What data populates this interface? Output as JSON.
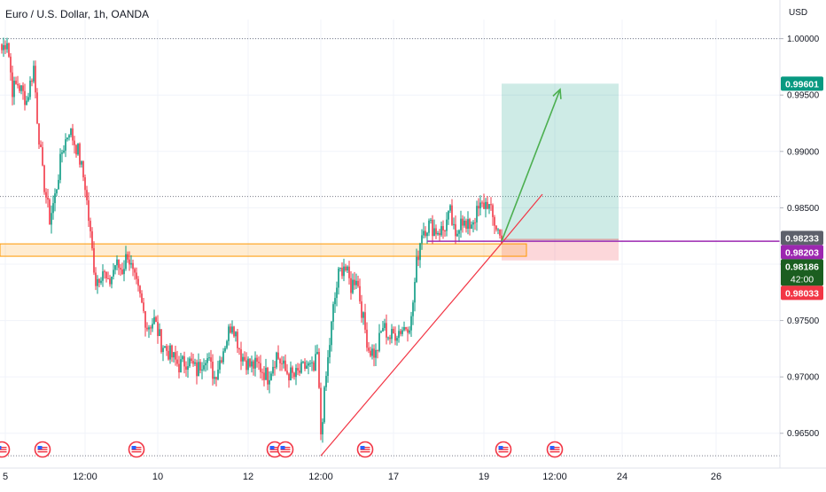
{
  "header": {
    "symbol_title": "Euro / U.S. Dollar, 1h, OANDA",
    "currency": "USD"
  },
  "chart_data": {
    "type": "candlestick",
    "title": "Euro / U.S. Dollar, 1h, OANDA",
    "y_unit": "USD",
    "y_ticks": [
      "1.00000",
      "0.99500",
      "0.99000",
      "0.98500",
      "0.98000",
      "0.97500",
      "0.97000",
      "0.96500"
    ],
    "y_tick_values": [
      1.0,
      0.995,
      0.99,
      0.985,
      0.98,
      0.975,
      0.97,
      0.965
    ],
    "ylim": [
      0.9627,
      1.0017
    ],
    "x_ticks": [
      "5",
      "12:00",
      "10",
      "12",
      "12:00",
      "17",
      "19",
      "12:00",
      "24",
      "26"
    ],
    "x_tick_index": [
      2,
      47,
      88,
      139,
      180,
      221,
      272,
      312,
      350,
      403
    ],
    "x_count": 470,
    "price_labels": [
      {
        "name": "long-target",
        "value": "0.99601",
        "price": 0.99601,
        "color": "#089981"
      },
      {
        "name": "previous-close",
        "value": "0.98233",
        "price": 0.98233,
        "color": "#5d606b"
      },
      {
        "name": "horizontal-line",
        "value": "0.98203",
        "price": 0.98203,
        "color": "#9c27b0"
      },
      {
        "name": "last-price",
        "value": "0.98186",
        "price": 0.98186,
        "color": "#1b5e20",
        "countdown": "42:00"
      },
      {
        "name": "stop-loss",
        "value": "0.98033",
        "price": 0.98033,
        "color": "#f23645"
      }
    ],
    "dotted_levels": [
      1.0,
      0.986,
      0.963
    ],
    "support_zone": {
      "top": 0.9818,
      "bottom": 0.9807,
      "x_start": 0,
      "x_end": 296,
      "color": "#ff9800"
    },
    "long_position": {
      "entry": 0.98203,
      "target": 0.99601,
      "stop": 0.98033,
      "x_start": 282,
      "x_end": 348,
      "profit_color": "#089981",
      "loss_color": "#f23645"
    },
    "trend_line": {
      "x1": 180,
      "y1": 0.963,
      "x2": 282,
      "y2": 0.98186,
      "ext_x": 305,
      "ext_y": 0.9862,
      "color": "#f23645"
    },
    "purple_line": {
      "x_start": 240,
      "price": 0.98203,
      "color": "#9c27b0"
    },
    "projection_arrow": {
      "x1": 282,
      "y1": 0.98203,
      "x2": 315,
      "y2": 0.9955,
      "color": "#4caf50"
    },
    "event_markers": [
      0,
      23,
      76,
      154,
      160,
      205,
      283,
      312
    ],
    "anchors": [
      [
        0,
        0.999
      ],
      [
        3,
        1.0
      ],
      [
        6,
        0.9955
      ],
      [
        9,
        0.996
      ],
      [
        14,
        0.9945
      ],
      [
        18,
        0.9975
      ],
      [
        20,
        0.993
      ],
      [
        23,
        0.988
      ],
      [
        27,
        0.984
      ],
      [
        30,
        0.986
      ],
      [
        34,
        0.99
      ],
      [
        38,
        0.992
      ],
      [
        43,
        0.99
      ],
      [
        47,
        0.987
      ],
      [
        50,
        0.9825
      ],
      [
        53,
        0.9785
      ],
      [
        57,
        0.9795
      ],
      [
        60,
        0.978
      ],
      [
        64,
        0.98
      ],
      [
        68,
        0.9795
      ],
      [
        71,
        0.981
      ],
      [
        74,
        0.979
      ],
      [
        78,
        0.977
      ],
      [
        82,
        0.9745
      ],
      [
        86,
        0.975
      ],
      [
        90,
        0.973
      ],
      [
        95,
        0.972
      ],
      [
        100,
        0.971
      ],
      [
        105,
        0.9715
      ],
      [
        110,
        0.9705
      ],
      [
        115,
        0.972
      ],
      [
        120,
        0.97
      ],
      [
        125,
        0.9725
      ],
      [
        130,
        0.975
      ],
      [
        135,
        0.972
      ],
      [
        140,
        0.971
      ],
      [
        145,
        0.971
      ],
      [
        150,
        0.97
      ],
      [
        155,
        0.972
      ],
      [
        160,
        0.9705
      ],
      [
        165,
        0.97
      ],
      [
        172,
        0.971
      ],
      [
        176,
        0.9705
      ],
      [
        178,
        0.972
      ],
      [
        180,
        0.965
      ],
      [
        183,
        0.97
      ],
      [
        187,
        0.976
      ],
      [
        190,
        0.979
      ],
      [
        193,
        0.98
      ],
      [
        197,
        0.978
      ],
      [
        200,
        0.979
      ],
      [
        204,
        0.975
      ],
      [
        207,
        0.9725
      ],
      [
        211,
        0.972
      ],
      [
        215,
        0.9745
      ],
      [
        219,
        0.9735
      ],
      [
        223,
        0.974
      ],
      [
        228,
        0.9745
      ],
      [
        231,
        0.975
      ],
      [
        234,
        0.98
      ],
      [
        237,
        0.983
      ],
      [
        241,
        0.9835
      ],
      [
        245,
        0.983
      ],
      [
        249,
        0.983
      ],
      [
        253,
        0.9845
      ],
      [
        256,
        0.982
      ],
      [
        259,
        0.9845
      ],
      [
        262,
        0.983
      ],
      [
        266,
        0.984
      ],
      [
        270,
        0.985
      ],
      [
        274,
        0.9855
      ],
      [
        277,
        0.984
      ],
      [
        280,
        0.983
      ],
      [
        282,
        0.98186
      ]
    ],
    "colors": {
      "up": "#089981",
      "down": "#f23645"
    }
  }
}
